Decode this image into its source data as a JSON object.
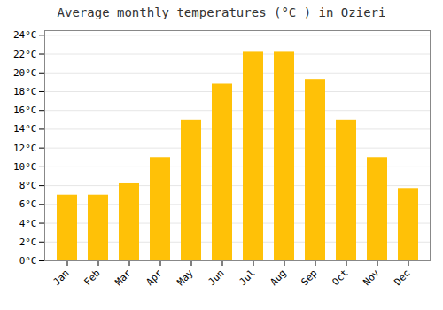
{
  "chart_data": {
    "type": "bar",
    "title": "Average monthly temperatures (°C ) in Ozieri",
    "categories": [
      "Jan",
      "Feb",
      "Mar",
      "Apr",
      "May",
      "Jun",
      "Jul",
      "Aug",
      "Sep",
      "Oct",
      "Nov",
      "Dec"
    ],
    "values": [
      7.0,
      7.0,
      8.2,
      11.0,
      15.0,
      18.8,
      22.2,
      22.2,
      19.3,
      15.0,
      11.0,
      7.7
    ],
    "color": "#FFC107",
    "ylim": [
      0,
      24.5
    ],
    "yticks": [
      {
        "value": 0,
        "label": "0°C"
      },
      {
        "value": 2,
        "label": "2°C"
      },
      {
        "value": 4,
        "label": "4°C"
      },
      {
        "value": 6,
        "label": "6°C"
      },
      {
        "value": 8,
        "label": "8°C"
      },
      {
        "value": 10,
        "label": "10°C"
      },
      {
        "value": 12,
        "label": "12°C"
      },
      {
        "value": 14,
        "label": "14°C"
      },
      {
        "value": 16,
        "label": "16°C"
      },
      {
        "value": 18,
        "label": "18°C"
      },
      {
        "value": 20,
        "label": "20°C"
      },
      {
        "value": 22,
        "label": "22°C"
      },
      {
        "value": 24,
        "label": "24°C"
      }
    ],
    "grid": true
  }
}
